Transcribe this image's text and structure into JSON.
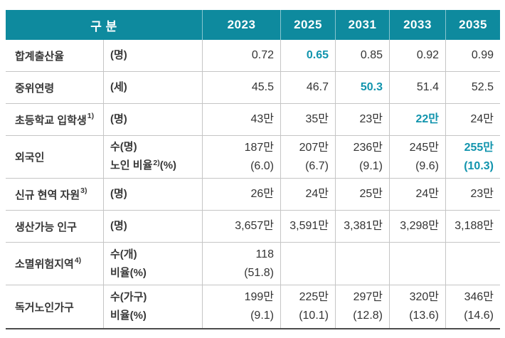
{
  "colors": {
    "header_bg": "#0e8a9e",
    "accent_text": "#1194ad",
    "grid_line": "#c5c5c5",
    "bottom_border": "#4c4c4c",
    "body_text": "#373737"
  },
  "table": {
    "header": {
      "category_label": "구 분",
      "years": [
        "2023",
        "2025",
        "2031",
        "2033",
        "2035"
      ]
    },
    "rows": [
      {
        "label": "합계출산율",
        "label_sup": "",
        "height": 45,
        "units": [
          {
            "pre": "(명)",
            "sup": "",
            "post": ""
          }
        ],
        "values": [
          [
            "0.72",
            "0.65",
            "0.85",
            "0.92",
            "0.99"
          ]
        ],
        "highlight": [
          [
            false,
            true,
            false,
            false,
            false
          ]
        ]
      },
      {
        "label": "중위연령",
        "label_sup": "",
        "height": 45,
        "units": [
          {
            "pre": "(세)",
            "sup": "",
            "post": ""
          }
        ],
        "values": [
          [
            "45.5",
            "46.7",
            "50.3",
            "51.4",
            "52.5"
          ]
        ],
        "highlight": [
          [
            false,
            false,
            true,
            false,
            false
          ]
        ]
      },
      {
        "label": "초등학교 입학생",
        "label_sup": "1)",
        "height": 45,
        "units": [
          {
            "pre": "(명)",
            "sup": "",
            "post": ""
          }
        ],
        "values": [
          [
            "43만",
            "35만",
            "23만",
            "22만",
            "24만"
          ]
        ],
        "highlight": [
          [
            false,
            false,
            false,
            true,
            false
          ]
        ]
      },
      {
        "label": "외국인",
        "label_sup": "",
        "height": 60,
        "units": [
          {
            "pre": "수(명)",
            "sup": "",
            "post": ""
          },
          {
            "pre": "노인 비율",
            "sup": "2)",
            "post": "(%)"
          }
        ],
        "values": [
          [
            "187만",
            "207만",
            "236만",
            "245만",
            "255만"
          ],
          [
            "(6.0)",
            "(6.7)",
            "(9.1)",
            "(9.6)",
            "(10.3)"
          ]
        ],
        "highlight": [
          [
            false,
            false,
            false,
            false,
            true
          ],
          [
            false,
            false,
            false,
            false,
            true
          ]
        ]
      },
      {
        "label": "신규 현역 자원",
        "label_sup": "3)",
        "height": 45,
        "units": [
          {
            "pre": "(명)",
            "sup": "",
            "post": ""
          }
        ],
        "values": [
          [
            "26만",
            "24만",
            "25만",
            "24만",
            "23만"
          ]
        ],
        "highlight": [
          [
            false,
            false,
            false,
            false,
            false
          ]
        ]
      },
      {
        "label": "생산가능 인구",
        "label_sup": "",
        "height": 45,
        "units": [
          {
            "pre": "(명)",
            "sup": "",
            "post": ""
          }
        ],
        "values": [
          [
            "3,657만",
            "3,591만",
            "3,381만",
            "3,298만",
            "3,188만"
          ]
        ],
        "highlight": [
          [
            false,
            false,
            false,
            false,
            false
          ]
        ]
      },
      {
        "label": "소멸위험지역",
        "label_sup": "4)",
        "height": 60,
        "units": [
          {
            "pre": "수(개)",
            "sup": "",
            "post": ""
          },
          {
            "pre": "비율(%)",
            "sup": "",
            "post": ""
          }
        ],
        "values": [
          [
            "118",
            "",
            "",
            "",
            ""
          ],
          [
            "(51.8)",
            "",
            "",
            "",
            ""
          ]
        ],
        "highlight": [
          [
            false,
            false,
            false,
            false,
            false
          ],
          [
            false,
            false,
            false,
            false,
            false
          ]
        ]
      },
      {
        "label": "독거노인가구",
        "label_sup": "",
        "height": 62,
        "units": [
          {
            "pre": "수(가구)",
            "sup": "",
            "post": ""
          },
          {
            "pre": "비율(%)",
            "sup": "",
            "post": ""
          }
        ],
        "values": [
          [
            "199만",
            "225만",
            "297만",
            "320만",
            "346만"
          ],
          [
            "(9.1)",
            "(10.1)",
            "(12.8)",
            "(13.6)",
            "(14.6)"
          ]
        ],
        "highlight": [
          [
            false,
            false,
            false,
            false,
            false
          ],
          [
            false,
            false,
            false,
            false,
            false
          ]
        ]
      }
    ]
  }
}
